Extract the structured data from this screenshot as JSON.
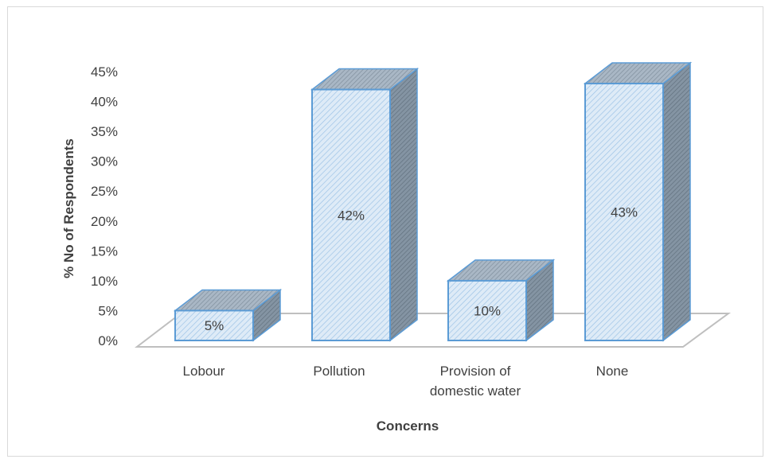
{
  "chart_data": {
    "type": "bar",
    "style": "3d-column",
    "categories": [
      "Lobour",
      "Pollution",
      "Provision of domestic water",
      "None"
    ],
    "category_lines": [
      [
        "Lobour"
      ],
      [
        "Pollution"
      ],
      [
        "Provision of",
        "domestic water"
      ],
      [
        "None"
      ]
    ],
    "values": [
      5,
      42,
      10,
      43
    ],
    "data_labels": [
      "5%",
      "42%",
      "10%",
      "43%"
    ],
    "title": "",
    "xlabel": "Concerns",
    "ylabel": "% No of Respondents",
    "ylim": [
      0,
      45
    ],
    "yticks": [
      0,
      5,
      10,
      15,
      20,
      25,
      30,
      35,
      40,
      45
    ],
    "ytick_labels": [
      "0%",
      "5%",
      "10%",
      "15%",
      "20%",
      "25%",
      "30%",
      "35%",
      "40%",
      "45%"
    ],
    "grid": false,
    "legend": "none",
    "colors": {
      "front_fill": "#deebf7",
      "hatch": "#9dc3e6",
      "border": "#5b9bd5",
      "side": "#7f8c99",
      "top": "#a6b4c2",
      "floor": "#bfbfbf",
      "text": "#404040"
    }
  }
}
